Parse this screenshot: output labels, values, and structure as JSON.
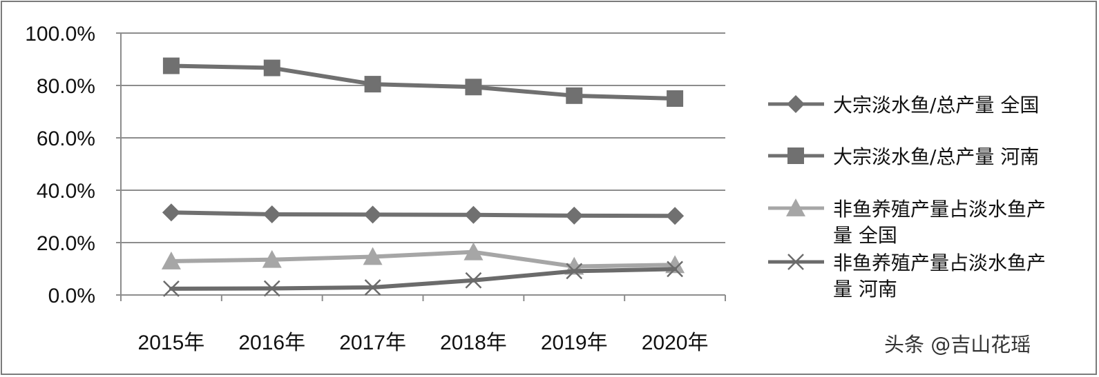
{
  "chart_data": {
    "type": "line",
    "categories": [
      "2015年",
      "2016年",
      "2017年",
      "2018年",
      "2019年",
      "2020年"
    ],
    "y_ticks": [
      "0.0%",
      "20.0%",
      "40.0%",
      "60.0%",
      "80.0%",
      "100.0%"
    ],
    "ylim": [
      0,
      100
    ],
    "grid": true,
    "legend_position": "right",
    "series": [
      {
        "name": "大宗淡水鱼/总产量 全国",
        "name_lines": [
          "大宗淡水鱼/总产量 全国"
        ],
        "values": [
          31.5,
          30.8,
          30.7,
          30.6,
          30.3,
          30.2
        ],
        "color": "#707070",
        "marker": "diamond"
      },
      {
        "name": "大宗淡水鱼/总产量 河南",
        "name_lines": [
          "大宗淡水鱼/总产量 河南"
        ],
        "values": [
          87.5,
          86.7,
          80.5,
          79.4,
          76.1,
          75.0
        ],
        "color": "#707070",
        "marker": "square"
      },
      {
        "name": "非鱼养殖产量占淡水鱼产量 全国",
        "name_lines": [
          "非鱼养殖产量占淡水鱼产",
          "量 全国"
        ],
        "values": [
          12.9,
          13.5,
          14.6,
          16.4,
          10.9,
          11.5
        ],
        "color": "#a6a6a6",
        "marker": "triangle"
      },
      {
        "name": "非鱼养殖产量占淡水鱼产量 河南",
        "name_lines": [
          "非鱼养殖产量占淡水鱼产",
          "量 河南"
        ],
        "values": [
          2.4,
          2.5,
          2.9,
          5.6,
          9.1,
          9.9
        ],
        "color": "#6b6b6b",
        "marker": "x"
      }
    ]
  },
  "watermark": "头条 @吉山花瑶"
}
